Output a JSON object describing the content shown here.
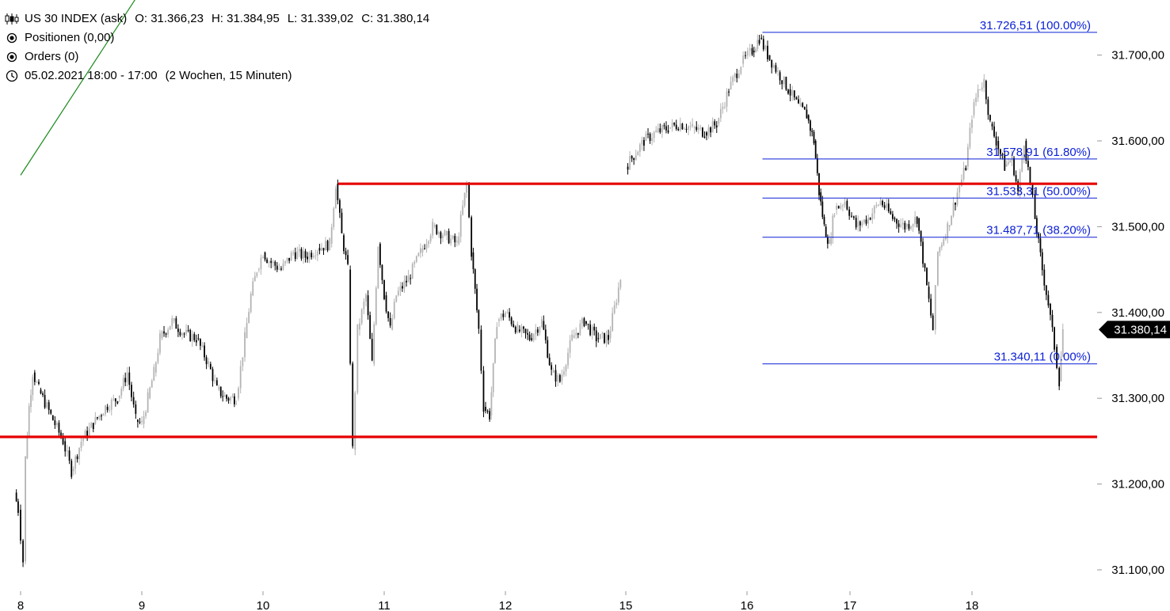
{
  "header": {
    "symbol": "US 30 INDEX (ask)",
    "open": "O: 31.366,23",
    "high": "H: 31.384,95",
    "low": "L: 31.339,02",
    "close": "C: 31.380,14",
    "positions": "Positionen (0,00)",
    "orders": "Orders (0)",
    "range": "05.02.2021 18:00 - 17:00",
    "period": "(2 Wochen, 15 Minuten)"
  },
  "colors": {
    "support_resistance": "#e60000",
    "fib": "#0a1fd6",
    "trend": "#1a8a1a",
    "candle_up": "#b4b4b4",
    "candle_down": "#000000"
  },
  "chart_data": {
    "type": "candlestick",
    "y_ticks": [
      "31.100,00",
      "31.200,00",
      "31.300,00",
      "31.400,00",
      "31.500,00",
      "31.600,00",
      "31.700,00"
    ],
    "y_tick_values": [
      31100,
      31200,
      31300,
      31400,
      31500,
      31600,
      31700
    ],
    "x_ticks": [
      "8",
      "9",
      "10",
      "11",
      "12",
      "15",
      "16",
      "17",
      "18"
    ],
    "ylim": [
      31065,
      31745
    ],
    "current_price": {
      "value": 31380.14,
      "label": "31.380,14"
    },
    "horizontal_levels": [
      {
        "value": 31550,
        "from_day": 10.62,
        "to_day": 18.99
      },
      {
        "value": 31255,
        "from_day": 8.0,
        "to_day": 18.99
      }
    ],
    "fibonacci": {
      "from_day": 16.15,
      "to_day": 18.99,
      "levels": [
        {
          "value": 31726.51,
          "label": "31.726,51 (100.00%)"
        },
        {
          "value": 31578.91,
          "label": "31.578,91 (61.80%)"
        },
        {
          "value": 31533.31,
          "label": "31.533,31 (50.00%)"
        },
        {
          "value": 31487.71,
          "label": "31.487,71 (38.20%)"
        },
        {
          "value": 31340.11,
          "label": "31.340,11 (0.00%)"
        }
      ]
    },
    "trend_line": {
      "from": [
        8.0,
        31560
      ],
      "to": [
        9.2,
        31820
      ]
    },
    "price_path": [
      [
        7.95,
        31190
      ],
      [
        7.98,
        31170
      ],
      [
        8.02,
        31110
      ],
      [
        8.04,
        31230
      ],
      [
        8.07,
        31290
      ],
      [
        8.1,
        31330
      ],
      [
        8.15,
        31310
      ],
      [
        8.25,
        31280
      ],
      [
        8.35,
        31250
      ],
      [
        8.42,
        31215
      ],
      [
        8.5,
        31250
      ],
      [
        8.6,
        31270
      ],
      [
        8.7,
        31290
      ],
      [
        8.8,
        31300
      ],
      [
        8.88,
        31330
      ],
      [
        8.95,
        31275
      ],
      [
        9.0,
        31270
      ],
      [
        9.05,
        31300
      ],
      [
        9.1,
        31330
      ],
      [
        9.15,
        31370
      ],
      [
        9.25,
        31390
      ],
      [
        9.35,
        31375
      ],
      [
        9.45,
        31370
      ],
      [
        9.55,
        31340
      ],
      [
        9.62,
        31310
      ],
      [
        9.7,
        31300
      ],
      [
        9.78,
        31300
      ],
      [
        9.85,
        31370
      ],
      [
        9.9,
        31420
      ],
      [
        9.95,
        31450
      ],
      [
        10.0,
        31470
      ],
      [
        10.05,
        31460
      ],
      [
        10.15,
        31450
      ],
      [
        10.25,
        31470
      ],
      [
        10.35,
        31465
      ],
      [
        10.45,
        31475
      ],
      [
        10.55,
        31480
      ],
      [
        10.6,
        31550
      ],
      [
        10.65,
        31490
      ],
      [
        10.7,
        31450
      ],
      [
        10.74,
        31240
      ],
      [
        10.78,
        31380
      ],
      [
        10.85,
        31420
      ],
      [
        10.9,
        31340
      ],
      [
        10.95,
        31480
      ],
      [
        11.0,
        31420
      ],
      [
        11.05,
        31380
      ],
      [
        11.1,
        31420
      ],
      [
        11.2,
        31440
      ],
      [
        11.3,
        31470
      ],
      [
        11.4,
        31500
      ],
      [
        11.5,
        31490
      ],
      [
        11.6,
        31480
      ],
      [
        11.68,
        31550
      ],
      [
        11.72,
        31470
      ],
      [
        11.78,
        31380
      ],
      [
        11.82,
        31290
      ],
      [
        11.87,
        31280
      ],
      [
        11.93,
        31390
      ],
      [
        12.0,
        31400
      ],
      [
        12.1,
        31380
      ],
      [
        12.2,
        31370
      ],
      [
        12.3,
        31390
      ],
      [
        12.38,
        31330
      ],
      [
        12.45,
        31320
      ],
      [
        12.55,
        31370
      ],
      [
        12.65,
        31390
      ],
      [
        12.75,
        31370
      ],
      [
        12.85,
        31370
      ],
      [
        12.95,
        31440
      ]
    ],
    "price_path_2": [
      [
        15.0,
        31570
      ],
      [
        15.05,
        31580
      ],
      [
        15.15,
        31600
      ],
      [
        15.25,
        31610
      ],
      [
        15.35,
        31615
      ],
      [
        15.45,
        31620
      ],
      [
        15.55,
        31615
      ],
      [
        15.65,
        31610
      ],
      [
        15.75,
        31620
      ],
      [
        15.85,
        31660
      ],
      [
        15.95,
        31690
      ],
      [
        16.05,
        31705
      ],
      [
        16.12,
        31720
      ],
      [
        16.2,
        31700
      ],
      [
        16.3,
        31680
      ],
      [
        16.4,
        31660
      ],
      [
        16.5,
        31640
      ],
      [
        16.58,
        31630
      ],
      [
        16.65,
        31600
      ],
      [
        16.7,
        31540
      ],
      [
        16.75,
        31500
      ],
      [
        16.8,
        31480
      ],
      [
        16.85,
        31520
      ],
      [
        16.95,
        31530
      ],
      [
        17.05,
        31500
      ],
      [
        17.15,
        31510
      ],
      [
        17.25,
        31530
      ],
      [
        17.35,
        31510
      ],
      [
        17.45,
        31500
      ],
      [
        17.55,
        31510
      ],
      [
        17.63,
        31430
      ],
      [
        17.68,
        31380
      ],
      [
        17.72,
        31470
      ],
      [
        17.8,
        31500
      ],
      [
        17.88,
        31540
      ],
      [
        17.95,
        31570
      ],
      [
        18.0,
        31630
      ],
      [
        18.05,
        31660
      ],
      [
        18.1,
        31670
      ],
      [
        18.15,
        31620
      ],
      [
        18.2,
        31600
      ],
      [
        18.27,
        31570
      ],
      [
        18.33,
        31580
      ],
      [
        18.38,
        31540
      ],
      [
        18.43,
        31600
      ],
      [
        18.48,
        31550
      ],
      [
        18.52,
        31510
      ],
      [
        18.58,
        31450
      ],
      [
        18.63,
        31410
      ],
      [
        18.68,
        31360
      ],
      [
        18.72,
        31320
      ],
      [
        18.75,
        31380
      ]
    ]
  }
}
